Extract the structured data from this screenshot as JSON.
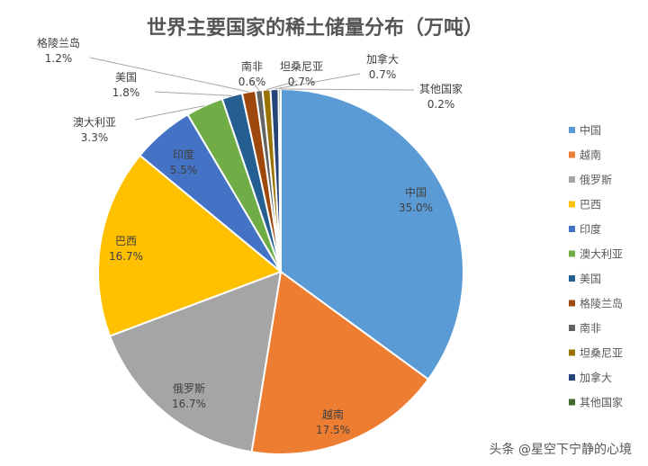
{
  "chart_data": {
    "type": "pie",
    "title": "世界主要国家的稀土储量分布（万吨）",
    "legend_position": "right",
    "slices": [
      {
        "name": "中国",
        "value": 35.0,
        "label": "35.0%",
        "color": "#5B9BD5"
      },
      {
        "name": "越南",
        "value": 17.5,
        "label": "17.5%",
        "color": "#ED7D31"
      },
      {
        "name": "俄罗斯",
        "value": 16.7,
        "label": "16.7%",
        "color": "#A5A5A5"
      },
      {
        "name": "巴西",
        "value": 16.7,
        "label": "16.7%",
        "color": "#FFC000"
      },
      {
        "name": "印度",
        "value": 5.5,
        "label": "5.5%",
        "color": "#4472C4"
      },
      {
        "name": "澳大利亚",
        "value": 3.3,
        "label": "3.3%",
        "color": "#70AD47"
      },
      {
        "name": "美国",
        "value": 1.8,
        "label": "1.8%",
        "color": "#255E91"
      },
      {
        "name": "格陵兰岛",
        "value": 1.2,
        "label": "1.2%",
        "color": "#9E480E"
      },
      {
        "name": "南非",
        "value": 0.6,
        "label": "0.6%",
        "color": "#636363"
      },
      {
        "name": "坦桑尼亚",
        "value": 0.7,
        "label": "0.7%",
        "color": "#997300"
      },
      {
        "name": "加拿大",
        "value": 0.7,
        "label": "0.7%",
        "color": "#264478"
      },
      {
        "name": "其他国家",
        "value": 0.2,
        "label": "0.2%",
        "color": "#43682B"
      }
    ]
  },
  "watermark": "头条 @星空下宁静的心境"
}
